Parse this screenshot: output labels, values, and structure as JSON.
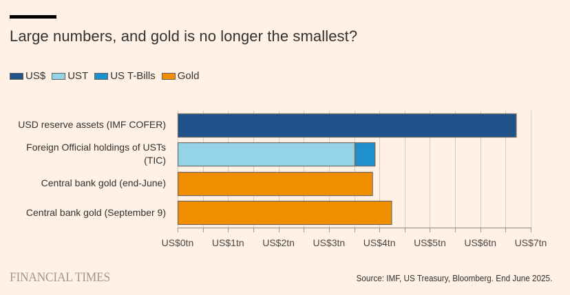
{
  "header": {
    "title": "Large numbers, and gold is no longer the smallest?"
  },
  "legend": [
    {
      "label": "US$",
      "color": "#1F5389"
    },
    {
      "label": "UST",
      "color": "#95D3E6"
    },
    {
      "label": "US T-Bills",
      "color": "#1E8FCF"
    },
    {
      "label": "Gold",
      "color": "#F08E00"
    }
  ],
  "footer": {
    "logo": "FINANCIAL TIMES",
    "source": "Source: IMF, US Treasury, Bloomberg. End June 2025."
  },
  "chart_data": {
    "type": "bar",
    "orientation": "horizontal",
    "stacked": true,
    "title": "Large numbers, and gold is no longer the smallest?",
    "xlabel": "",
    "ylabel": "",
    "xlim": [
      0,
      7
    ],
    "grid": true,
    "legend_position": "top-left",
    "categories": [
      "USD reserve assets (IMF COFER)",
      "Foreign Official holdings of USTs (TIC)",
      "Central bank gold (end-June)",
      "Central bank gold (September 9)"
    ],
    "category_lines": [
      [
        "USD reserve assets (IMF COFER)"
      ],
      [
        "Foreign Official holdings of USTs",
        "(TIC)"
      ],
      [
        "Central bank gold (end-June)"
      ],
      [
        "Central bank gold (September 9)"
      ]
    ],
    "series": [
      {
        "name": "US$",
        "color": "#1F5389",
        "values": [
          6.72,
          0,
          0,
          0
        ]
      },
      {
        "name": "UST",
        "color": "#95D3E6",
        "values": [
          0,
          3.52,
          0,
          0
        ]
      },
      {
        "name": "US T-Bills",
        "color": "#1E8FCF",
        "values": [
          0,
          0.4,
          0,
          0
        ]
      },
      {
        "name": "Gold",
        "color": "#F08E00",
        "values": [
          0,
          0,
          3.87,
          4.25
        ]
      }
    ],
    "x_ticks": [
      0,
      1,
      2,
      3,
      4,
      5,
      6,
      7
    ],
    "x_tick_labels": [
      "US$0tn",
      "US$1tn",
      "US$2tn",
      "US$3tn",
      "US$4tn",
      "US$5tn",
      "US$6tn",
      "US$7tn"
    ],
    "units": "US$ trillion"
  }
}
